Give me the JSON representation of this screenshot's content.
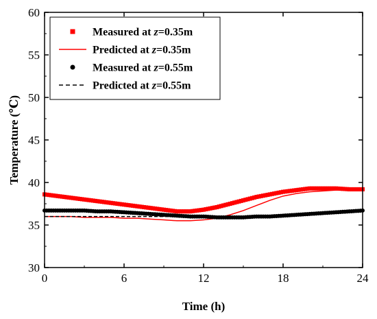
{
  "chart_data": {
    "type": "line",
    "title": "",
    "xlabel": "Time (h)",
    "ylabel": "Temperature (℃)",
    "xlim": [
      0,
      24
    ],
    "ylim": [
      30,
      60
    ],
    "xticks": [
      0,
      6,
      12,
      18,
      24
    ],
    "yticks": [
      30,
      35,
      40,
      45,
      50,
      55,
      60
    ],
    "grid": false,
    "legend_position": "top-left",
    "series": [
      {
        "name": "Measured at z=0.35m",
        "name_parts": [
          "Measured at ",
          "z",
          "=0.35m"
        ],
        "style": "square-markers",
        "color": "#ff0000",
        "x": [
          0,
          1,
          2,
          3,
          4,
          5,
          6,
          7,
          8,
          9,
          10,
          11,
          12,
          13,
          14,
          15,
          16,
          17,
          18,
          19,
          20,
          21,
          22,
          23,
          24
        ],
        "y": [
          38.6,
          38.4,
          38.2,
          38.0,
          37.8,
          37.6,
          37.4,
          37.2,
          37.0,
          36.8,
          36.6,
          36.6,
          36.8,
          37.1,
          37.5,
          37.9,
          38.3,
          38.6,
          38.9,
          39.1,
          39.3,
          39.3,
          39.3,
          39.2,
          39.2
        ]
      },
      {
        "name": "Predicted at z=0.35m",
        "name_parts": [
          "Predicted at ",
          "z",
          "=0.35m"
        ],
        "style": "solid-line",
        "color": "#ff0000",
        "x": [
          0,
          1,
          2,
          3,
          4,
          5,
          6,
          7,
          8,
          9,
          10,
          11,
          12,
          13,
          14,
          15,
          16,
          17,
          18,
          19,
          20,
          21,
          22,
          23,
          24
        ],
        "y": [
          36.0,
          36.0,
          36.0,
          35.9,
          35.9,
          35.9,
          35.8,
          35.8,
          35.7,
          35.6,
          35.5,
          35.5,
          35.6,
          35.8,
          36.2,
          36.7,
          37.3,
          37.9,
          38.4,
          38.7,
          38.9,
          39.0,
          39.1,
          39.2,
          39.2
        ]
      },
      {
        "name": "Measured at z=0.55m",
        "name_parts": [
          "Measured at ",
          "z",
          "=0.55m"
        ],
        "style": "circle-markers",
        "color": "#000000",
        "x": [
          0,
          1,
          2,
          3,
          4,
          5,
          6,
          7,
          8,
          9,
          10,
          11,
          12,
          13,
          14,
          15,
          16,
          17,
          18,
          19,
          20,
          21,
          22,
          23,
          24
        ],
        "y": [
          36.7,
          36.7,
          36.7,
          36.7,
          36.6,
          36.6,
          36.5,
          36.4,
          36.3,
          36.2,
          36.1,
          36.0,
          36.0,
          35.9,
          35.9,
          35.9,
          36.0,
          36.0,
          36.1,
          36.2,
          36.3,
          36.4,
          36.5,
          36.6,
          36.7
        ]
      },
      {
        "name": "Predicted at z=0.55m",
        "name_parts": [
          "Predicted at ",
          "z",
          "=0.55m"
        ],
        "style": "dashed-line",
        "color": "#000000",
        "x": [
          0,
          2,
          4,
          6,
          8,
          10,
          12,
          14,
          16,
          18,
          20,
          22,
          24
        ],
        "y": [
          36.0,
          36.0,
          36.0,
          36.0,
          36.0,
          36.0,
          35.9,
          35.9,
          36.0,
          36.1,
          36.3,
          36.5,
          36.7
        ]
      }
    ]
  }
}
